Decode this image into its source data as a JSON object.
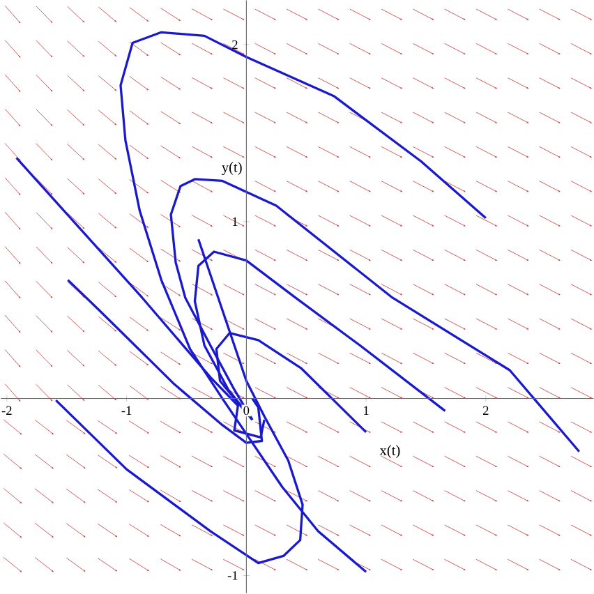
{
  "chart_data": {
    "type": "line",
    "xlabel": "x(t)",
    "ylabel": "y(t)",
    "xlim": [
      -2.05,
      2.9
    ],
    "ylim": [
      -1.1,
      2.25
    ],
    "xticks": [
      -2,
      -1,
      0,
      1,
      2
    ],
    "yticks": [
      -1,
      1,
      2
    ],
    "marker": "none",
    "line_style": "solid",
    "series": [
      {
        "color": "#1a1acc",
        "x": [
          2.0,
          1.46,
          0.73,
          0,
          -0.35,
          -0.71,
          -0.95,
          -1.05,
          -1.01,
          -0.89,
          -0.71,
          -0.47,
          -0.2,
          0,
          0.3,
          0.6,
          1.0
        ],
        "values": [
          1.02,
          1.34,
          1.71,
          1.93,
          2.05,
          2.07,
          2.01,
          1.77,
          1.46,
          1.06,
          0.67,
          0.28,
          0.0,
          -0.2,
          -0.5,
          -0.75,
          -0.98
        ]
      },
      {
        "color": "#1a1acc",
        "x": [
          2.78,
          2.2,
          1.22,
          0.25,
          -0.2,
          -0.43,
          -0.55,
          -0.63,
          -0.59,
          -0.51,
          -0.3,
          -0.1,
          0.05
        ],
        "values": [
          -0.3,
          0.16,
          0.57,
          1.09,
          1.23,
          1.24,
          1.2,
          1.04,
          0.77,
          0.57,
          0.3,
          0.05,
          -0.12
        ]
      },
      {
        "color": "#1a1acc",
        "x": [
          1.66,
          0.95,
          0.41,
          0,
          -0.27,
          -0.4,
          -0.43,
          -0.35,
          -0.15,
          0.05
        ],
        "values": [
          -0.07,
          0.3,
          0.57,
          0.78,
          0.83,
          0.75,
          0.55,
          0.3,
          0.05,
          -0.12
        ]
      },
      {
        "color": "#1a1acc",
        "x": [
          1.0,
          0.46,
          0.1,
          -0.14,
          -0.25,
          -0.22,
          -0.1,
          0.05
        ],
        "values": [
          -0.19,
          0.17,
          0.33,
          0.37,
          0.28,
          0.1,
          0.0,
          -0.12
        ]
      },
      {
        "color": "#1a1acc",
        "x": [
          -1.92,
          -0.87,
          -0.3,
          -0.07,
          -0.1,
          0.12,
          0.15
        ],
        "values": [
          1.36,
          0.57,
          0.12,
          -0.04,
          -0.18,
          -0.22,
          -0.12
        ]
      },
      {
        "color": "#1a1acc",
        "x": [
          -1.49,
          -1.23,
          -0.6,
          -0.2,
          0.0,
          0.13,
          0.1,
          0.05
        ],
        "values": [
          0.67,
          0.5,
          0.08,
          -0.15,
          -0.25,
          -0.24,
          -0.05,
          0.0
        ]
      },
      {
        "color": "#1a1acc",
        "x": [
          -1.59,
          -1.0,
          -0.3,
          0.1,
          0.31,
          0.45,
          0.47,
          0.35,
          0.15,
          0.0,
          -0.2,
          -0.4
        ],
        "values": [
          -0.01,
          -0.4,
          -0.75,
          -0.93,
          -0.89,
          -0.8,
          -0.6,
          -0.35,
          -0.1,
          0.1,
          0.5,
          0.9
        ]
      }
    ]
  }
}
